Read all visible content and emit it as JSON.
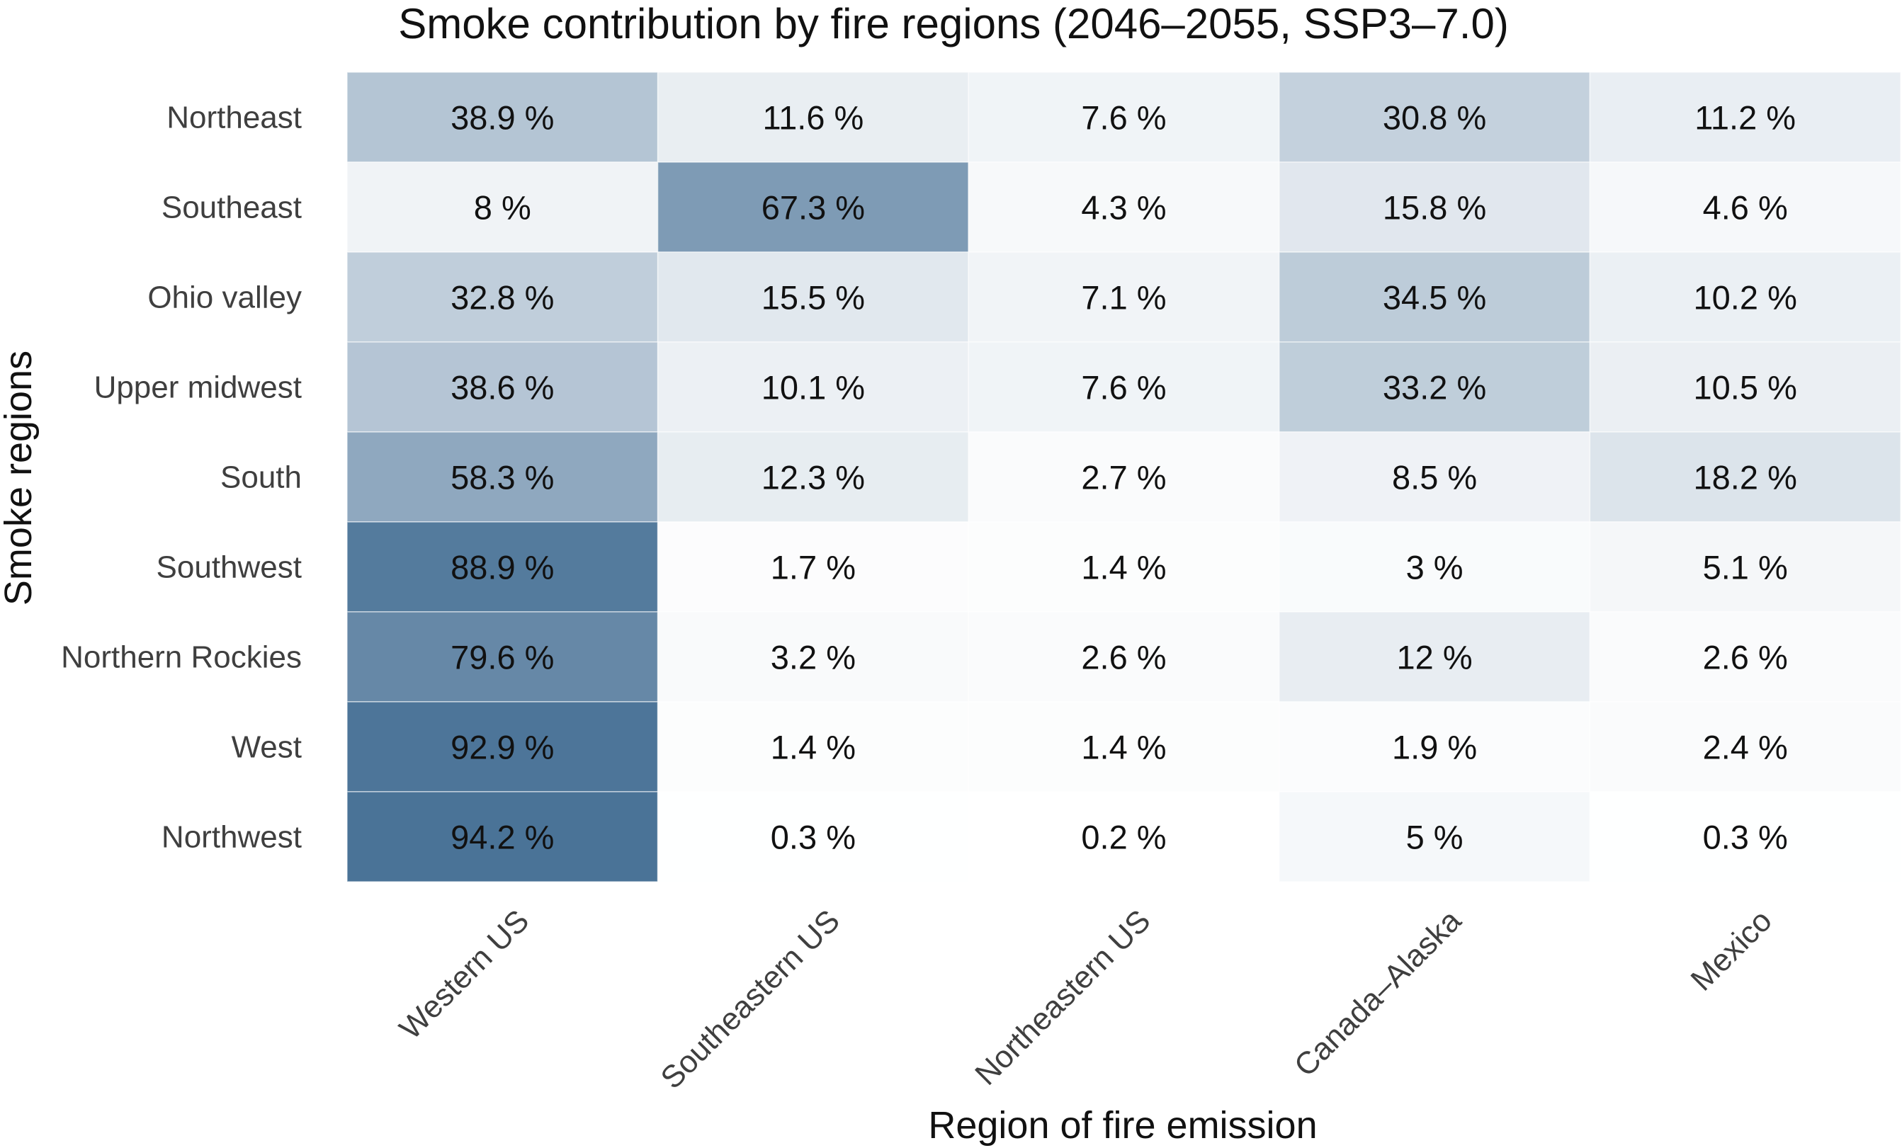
{
  "chart_data": {
    "type": "heatmap",
    "title": "Smoke contribution by fire regions (2046–2055, SSP3–7.0)",
    "xlabel": "Region of fire emission",
    "ylabel": "Smoke regions",
    "columns": [
      "Western US",
      "Southeastern US",
      "Northeastern US",
      "Canada–Alaska",
      "Mexico"
    ],
    "rows": [
      "Northeast",
      "Southeast",
      "Ohio valley",
      "Upper midwest",
      "South",
      "Southwest",
      "Northern Rockies",
      "West",
      "Northwest"
    ],
    "values": [
      [
        38.9,
        11.6,
        7.6,
        30.8,
        11.2
      ],
      [
        8,
        67.3,
        4.3,
        15.8,
        4.6
      ],
      [
        32.8,
        15.5,
        7.1,
        34.5,
        10.2
      ],
      [
        38.6,
        10.1,
        7.6,
        33.2,
        10.5
      ],
      [
        58.3,
        12.3,
        2.7,
        8.5,
        18.2
      ],
      [
        88.9,
        1.7,
        1.4,
        3,
        5.1
      ],
      [
        79.6,
        3.2,
        2.6,
        12,
        2.6
      ],
      [
        92.9,
        1.4,
        1.4,
        1.9,
        2.4
      ],
      [
        94.2,
        0.3,
        0.2,
        5,
        0.3
      ]
    ],
    "value_suffix": " %",
    "color_low": "#ffffff",
    "color_high": "#3f6a91",
    "vmin": 0,
    "vmax": 100
  }
}
